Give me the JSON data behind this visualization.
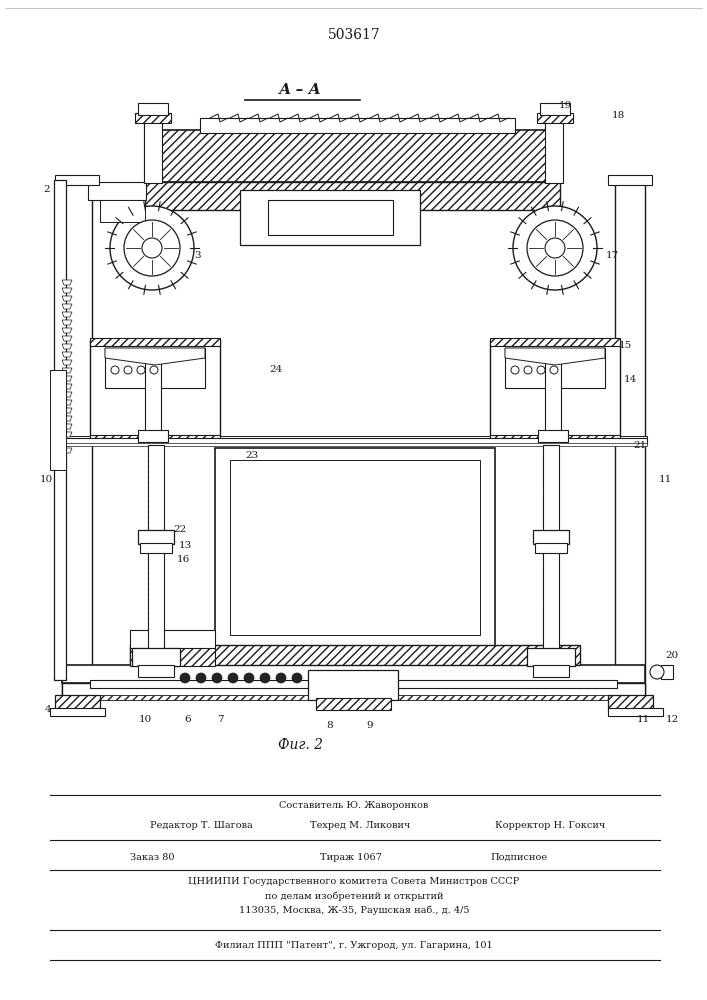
{
  "patent_number": "503617",
  "figure_label": "Фиг. 2",
  "section_label": "А – А",
  "bg_color": "#ffffff",
  "line_color": "#1a1a1a",
  "footer": {
    "line1": "Составитель Ю. Жаворонков",
    "editor": "Редактор Т. Шагова",
    "tekhred": "Техред М. Ликович",
    "korrektor": "Корректор Н. Гоксич",
    "zakaz": "Заказ 80",
    "tirazh": "Тираж 1067",
    "podpisnoe": "Подписное",
    "tsniipi1": "ЦНИИПИ Государственного комитета Совета Министров СССР",
    "tsniipi2": "по делам изобретений и открытий",
    "address": "113035, Москва, Ж-35, Раушская наб., д. 4/5",
    "filial": "Филиал ППП \"Патент\", г. Ужгород, ул. Гагарина, 101"
  }
}
